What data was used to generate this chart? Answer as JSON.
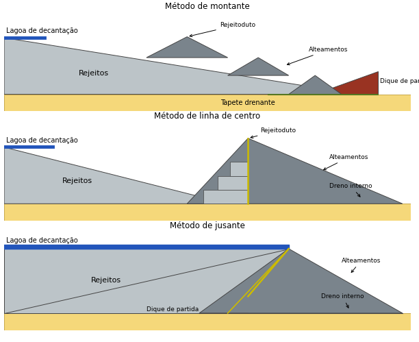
{
  "title1": "Método de montante",
  "title2": "Método de linha de centro",
  "title3": "Método de jusante",
  "bg_color": "#ffffff",
  "sand_color": "#f5d87a",
  "sand_border": "#c8a84b",
  "rejeitos_light": "#bcc4c8",
  "rejeitos_dark": "#7a848c",
  "dique_color": "#993322",
  "blue_color": "#2255bb",
  "yellow_line": "#ccbb00",
  "green_color": "#557722",
  "border_color": "#444444",
  "text_color": "#000000",
  "panel_border": "#888888"
}
